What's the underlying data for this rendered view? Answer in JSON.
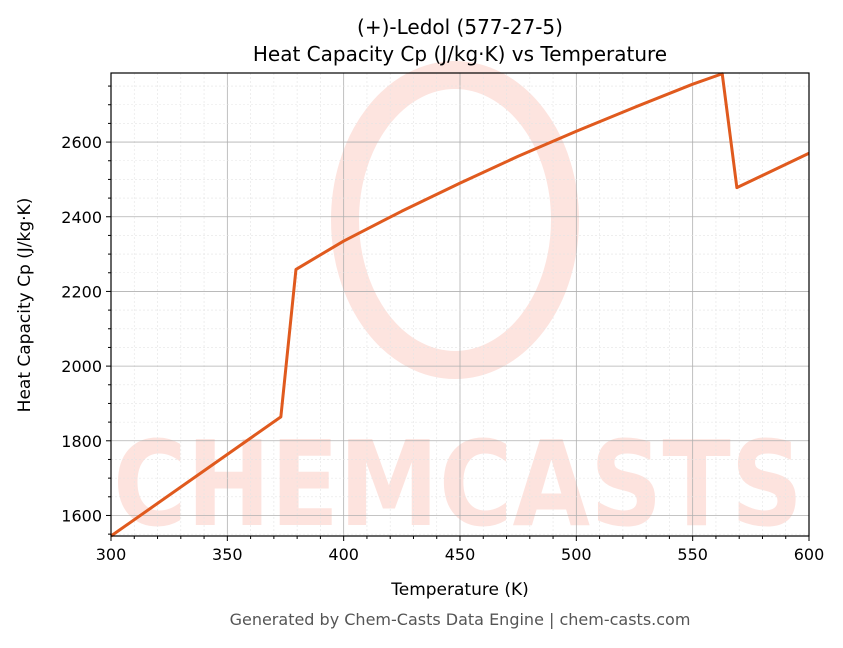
{
  "chart_data": {
    "type": "line",
    "title": "(+)-Ledol (577-27-5)",
    "subtitle": "Heat Capacity Cp (J/kg·K) vs Temperature",
    "xlabel": "Temperature (K)",
    "ylabel": "Heat Capacity Cp (J/kg·K)",
    "xlim": [
      300,
      600
    ],
    "ylim": [
      1545,
      2785
    ],
    "xticks": [
      300,
      350,
      400,
      450,
      500,
      550,
      600
    ],
    "yticks": [
      1600,
      1800,
      2000,
      2200,
      2400,
      2600
    ],
    "grid": true,
    "series": [
      {
        "color": "#e05a1e",
        "x": [
          300,
          373,
          379.5,
          400,
          425,
          450,
          475,
          500,
          525,
          550,
          562.7,
          569,
          600
        ],
        "y": [
          1545,
          1864,
          2259,
          2335,
          2415,
          2490,
          2562,
          2629,
          2693,
          2755,
          2783,
          2478,
          2570
        ]
      }
    ]
  },
  "watermark": "CHEMCASTS",
  "footer": "Generated by Chem-Casts Data Engine | chem-casts.com"
}
